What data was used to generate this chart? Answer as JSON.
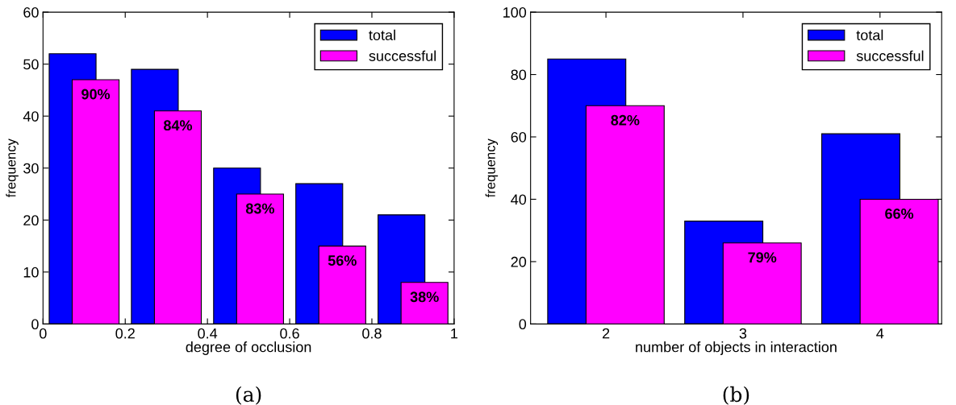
{
  "chart_data": [
    {
      "type": "bar",
      "x": [
        0.1,
        0.3,
        0.5,
        0.7,
        0.9
      ],
      "xlabel": "degree of occlusion",
      "ylabel": "frequency",
      "xlim": [
        0,
        1
      ],
      "xticks": [
        0,
        0.2,
        0.4,
        0.6,
        0.8,
        1
      ],
      "ylim": [
        0,
        60
      ],
      "yticks": [
        0,
        10,
        20,
        30,
        40,
        50,
        60
      ],
      "legend": "top right",
      "annotations": [
        "(a)",
        {
          "text": "90%",
          "x": 0.1,
          "y": 47
        },
        {
          "text": "84%",
          "x": 0.3,
          "y": 41
        },
        {
          "text": "83%",
          "x": 0.5,
          "y": 25
        },
        {
          "text": "56%",
          "x": 0.7,
          "y": 15
        },
        {
          "text": "38%",
          "x": 0.9,
          "y": 8
        }
      ],
      "series": [
        {
          "name": "total",
          "color": "#0000ff",
          "values": [
            52,
            49,
            30,
            27,
            21
          ]
        },
        {
          "name": "successful",
          "color": "#ff00ff",
          "values": [
            47,
            41,
            25,
            15,
            8
          ]
        }
      ]
    },
    {
      "type": "bar",
      "categories": [
        "2",
        "3",
        "4"
      ],
      "xlabel": "number of objects in interaction",
      "ylabel": "frequency",
      "ylim": [
        0,
        100
      ],
      "yticks": [
        0,
        20,
        40,
        60,
        80,
        100
      ],
      "legend": "top right",
      "annotations": [
        "(b)",
        {
          "text": "82%",
          "x": "2",
          "y": 70
        },
        {
          "text": "79%",
          "x": "3",
          "y": 26
        },
        {
          "text": "66%",
          "x": "4",
          "y": 40
        }
      ],
      "series": [
        {
          "name": "total",
          "color": "#0000ff",
          "values": [
            85,
            33,
            61
          ]
        },
        {
          "name": "successful",
          "color": "#ff00ff",
          "values": [
            70,
            26,
            40
          ]
        }
      ]
    }
  ]
}
